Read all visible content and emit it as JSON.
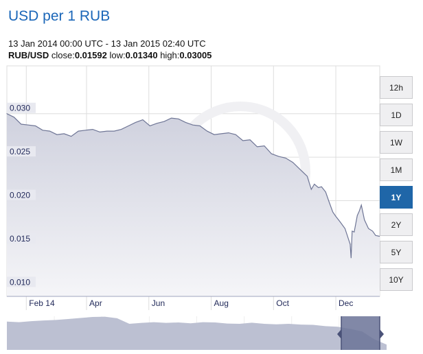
{
  "header": {
    "title": "USD per 1 RUB",
    "range": "13 Jan 2014 00:00 UTC - 13 Jan 2015 02:40 UTC",
    "pair": "RUB/USD",
    "close_label": "close:",
    "close": "0.01592",
    "low_label": "low:",
    "low": "0.01340",
    "high_label": "high:",
    "high": "0.03005"
  },
  "buttons": [
    "12h",
    "1D",
    "1W",
    "1M",
    "1Y",
    "2Y",
    "5Y",
    "10Y"
  ],
  "active_button": "1Y",
  "colors": {
    "accent": "#1f66a8",
    "line": "#6e7595",
    "fill": "#d9dbe6",
    "navigator": "#bcc0d2",
    "navigator_selected": "#6b7398"
  },
  "chart_data": {
    "type": "area",
    "title": "USD per 1 RUB",
    "xlabel": "",
    "ylabel": "",
    "ylim": [
      0.009,
      0.0355
    ],
    "xlim": [
      "2014-01-13",
      "2015-01-13"
    ],
    "y_ticks": [
      "0.010",
      "0.015",
      "0.020",
      "0.025",
      "0.030"
    ],
    "x_ticks": [
      {
        "date": "2014-02-01",
        "label": "Feb 14"
      },
      {
        "date": "2014-04-01",
        "label": "Apr"
      },
      {
        "date": "2014-06-01",
        "label": "Jun"
      },
      {
        "date": "2014-08-01",
        "label": "Aug"
      },
      {
        "date": "2014-10-01",
        "label": "Oct"
      },
      {
        "date": "2014-12-01",
        "label": "Dec"
      }
    ],
    "grid": true,
    "x": [
      "2014-01-13",
      "2014-01-20",
      "2014-01-27",
      "2014-02-03",
      "2014-02-10",
      "2014-02-17",
      "2014-02-24",
      "2014-03-03",
      "2014-03-10",
      "2014-03-17",
      "2014-03-24",
      "2014-03-31",
      "2014-04-07",
      "2014-04-14",
      "2014-04-21",
      "2014-04-28",
      "2014-05-05",
      "2014-05-12",
      "2014-05-19",
      "2014-05-26",
      "2014-06-02",
      "2014-06-09",
      "2014-06-16",
      "2014-06-23",
      "2014-06-30",
      "2014-07-07",
      "2014-07-14",
      "2014-07-21",
      "2014-07-28",
      "2014-08-04",
      "2014-08-11",
      "2014-08-18",
      "2014-08-25",
      "2014-09-01",
      "2014-09-08",
      "2014-09-15",
      "2014-09-22",
      "2014-09-29",
      "2014-10-06",
      "2014-10-13",
      "2014-10-20",
      "2014-10-27",
      "2014-11-03",
      "2014-11-07",
      "2014-11-10",
      "2014-11-14",
      "2014-11-17",
      "2014-11-21",
      "2014-11-24",
      "2014-11-28",
      "2014-12-01",
      "2014-12-05",
      "2014-12-10",
      "2014-12-15",
      "2014-12-16",
      "2014-12-17",
      "2014-12-19",
      "2014-12-22",
      "2014-12-24",
      "2014-12-26",
      "2014-12-29",
      "2015-01-02",
      "2015-01-06",
      "2015-01-09",
      "2015-01-13"
    ],
    "y": [
      0.03,
      0.0296,
      0.0288,
      0.0287,
      0.0286,
      0.0281,
      0.028,
      0.0276,
      0.0277,
      0.0274,
      0.028,
      0.0281,
      0.0282,
      0.0279,
      0.028,
      0.028,
      0.0282,
      0.0286,
      0.029,
      0.0293,
      0.0286,
      0.0289,
      0.0291,
      0.0295,
      0.0294,
      0.029,
      0.0287,
      0.0286,
      0.028,
      0.0276,
      0.0277,
      0.0278,
      0.0276,
      0.0269,
      0.027,
      0.0262,
      0.0263,
      0.0254,
      0.0251,
      0.0249,
      0.0244,
      0.0236,
      0.0228,
      0.0213,
      0.0219,
      0.0215,
      0.0216,
      0.021,
      0.02,
      0.0187,
      0.0182,
      0.0176,
      0.0168,
      0.015,
      0.0134,
      0.0165,
      0.0164,
      0.0183,
      0.0188,
      0.0195,
      0.0178,
      0.0168,
      0.0165,
      0.016,
      0.0159
    ]
  },
  "navigator": {
    "values": [
      0.0335,
      0.033,
      0.0338,
      0.0343,
      0.0347,
      0.0354,
      0.0362,
      0.037,
      0.0372,
      0.036,
      0.0318,
      0.0325,
      0.033,
      0.0325,
      0.0328,
      0.0322,
      0.033,
      0.0328,
      0.032,
      0.0318,
      0.0326,
      0.0318,
      0.0314,
      0.0318,
      0.0312,
      0.031,
      0.03,
      0.0296,
      0.028,
      0.026,
      0.02,
      0.016
    ]
  }
}
